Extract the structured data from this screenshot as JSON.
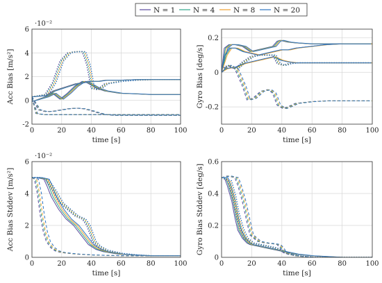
{
  "legend": {
    "position": "top-center",
    "entries": [
      {
        "label": "N = 1",
        "color": "#5b4a9e"
      },
      {
        "label": "N = 4",
        "color": "#2ea68a"
      },
      {
        "label": "N = 8",
        "color": "#f0a030"
      },
      {
        "label": "N = 20",
        "color": "#2d74c0"
      }
    ]
  },
  "line_styles": {
    "solid": "",
    "dashed": "4,3",
    "dotted": "1.5,2"
  },
  "chart_data": [
    {
      "type": "line",
      "ylabel": "Acc Bias [m/s²]",
      "xlabel": "time [s]",
      "xlim": [
        0,
        100
      ],
      "ylim": [
        -2,
        6
      ],
      "xticks": [
        0,
        20,
        40,
        60,
        80,
        100
      ],
      "yticks": [
        -2,
        0,
        2,
        4,
        6
      ],
      "exponent": "·10⁻²",
      "grid": true,
      "groups": [
        {
          "style": "solid",
          "x": [
            0,
            10,
            15,
            20,
            25,
            30,
            35,
            38,
            45,
            50,
            60,
            70,
            80,
            90,
            100
          ],
          "y": [
            -0.1,
            0.3,
            0.6,
            0.1,
            0.6,
            1.2,
            1.6,
            1.5,
            1.0,
            0.8,
            0.6,
            0.55,
            0.5,
            0.5,
            0.5
          ],
          "offsets": [
            -3,
            -1,
            1,
            3
          ]
        },
        {
          "style": "dotted",
          "x": [
            0,
            10,
            15,
            20,
            25,
            30,
            35,
            38,
            41,
            45,
            50,
            60,
            70,
            80,
            90,
            100
          ],
          "y": [
            0.3,
            0.5,
            1.5,
            3.3,
            4.0,
            4.1,
            4.1,
            3.0,
            1.0,
            0.9,
            1.4,
            1.6,
            1.7,
            1.75,
            1.75,
            1.75
          ],
          "offsets": [
            -3,
            -1,
            1,
            3
          ]
        },
        {
          "style": "solid",
          "x": [
            0,
            10,
            15,
            20,
            25,
            30,
            35,
            38,
            45,
            50,
            60,
            70,
            80,
            90,
            100
          ],
          "y": [
            0.3,
            0.4,
            0.8,
            1.0,
            1.2,
            1.4,
            1.5,
            1.6,
            1.6,
            1.7,
            1.7,
            1.75,
            1.75,
            1.75,
            1.75
          ],
          "offsets": [
            -2,
            0,
            1,
            2
          ]
        },
        {
          "style": "dashed",
          "x": [
            0,
            5,
            10,
            15,
            20,
            25,
            30,
            35,
            40,
            45,
            50,
            55,
            60,
            70,
            80,
            90,
            100
          ],
          "y": [
            0.3,
            -0.8,
            -0.95,
            -0.9,
            -0.8,
            -0.7,
            -0.65,
            -0.7,
            -0.85,
            -1.05,
            -1.2,
            -1.25,
            -1.25,
            -1.25,
            -1.25,
            -1.25,
            -1.25
          ],
          "offsets": [
            -2,
            0,
            1,
            2
          ]
        },
        {
          "style": "dashed",
          "x": [
            0,
            3,
            8,
            15,
            25,
            35,
            45,
            55,
            70,
            85,
            100
          ],
          "y": [
            0.2,
            -1.1,
            -1.2,
            -1.2,
            -1.2,
            -1.2,
            -1.2,
            -1.2,
            -1.2,
            -1.2,
            -1.2
          ],
          "offsets": [
            -1,
            0,
            1,
            2
          ]
        }
      ]
    },
    {
      "type": "line",
      "ylabel": "Gyro Bias [deg/s]",
      "xlabel": "time [s]",
      "xlim": [
        0,
        100
      ],
      "ylim": [
        -0.3,
        0.25
      ],
      "xticks": [
        0,
        20,
        40,
        60,
        80,
        100
      ],
      "yticks": [
        -0.2,
        0,
        0.2
      ],
      "exponent": "",
      "grid": true,
      "groups": [
        {
          "style": "solid",
          "x": [
            0,
            3,
            6,
            10,
            15,
            20,
            25,
            30,
            35,
            38,
            40,
            45,
            50,
            60,
            70,
            80,
            90,
            100
          ],
          "y": [
            0.0,
            0.14,
            0.16,
            0.16,
            0.15,
            0.12,
            0.13,
            0.14,
            0.15,
            0.18,
            0.185,
            0.175,
            0.17,
            0.165,
            0.165,
            0.165,
            0.165,
            0.165
          ],
          "offsets": [
            -3,
            -1,
            1,
            3
          ]
        },
        {
          "style": "solid",
          "x": [
            0,
            3,
            6,
            10,
            15,
            20,
            25,
            30,
            35,
            40,
            45,
            50,
            60,
            70,
            80,
            90,
            100
          ],
          "y": [
            0.0,
            0.1,
            0.14,
            0.14,
            0.12,
            0.11,
            0.1,
            0.11,
            0.12,
            0.13,
            0.13,
            0.14,
            0.15,
            0.16,
            0.165,
            0.165,
            0.165
          ],
          "offsets": [
            -2,
            0,
            2
          ]
        },
        {
          "style": "solid",
          "x": [
            0,
            3,
            6,
            10,
            15,
            20,
            25,
            30,
            35,
            40,
            45,
            50,
            60,
            70,
            80,
            90,
            100
          ],
          "y": [
            0.0,
            0.02,
            0.025,
            0.03,
            0.05,
            0.06,
            0.07,
            0.08,
            0.09,
            0.07,
            0.06,
            0.055,
            0.055,
            0.055,
            0.055,
            0.055,
            0.055
          ],
          "offsets": [
            -2,
            0,
            2
          ]
        },
        {
          "style": "dotted",
          "x": [
            0,
            5,
            10,
            15,
            20,
            25,
            30,
            35,
            38,
            42,
            45,
            50,
            60,
            70,
            80,
            90,
            100
          ],
          "y": [
            0.02,
            0.04,
            0.02,
            0.06,
            0.09,
            0.1,
            0.1,
            0.1,
            0.05,
            0.04,
            0.05,
            0.055,
            0.055,
            0.055,
            0.055,
            0.055,
            0.055
          ],
          "offsets": [
            -3,
            -1,
            1,
            3
          ]
        },
        {
          "style": "dashed",
          "x": [
            0,
            5,
            10,
            15,
            18,
            22,
            27,
            32,
            35,
            38,
            42,
            45,
            50,
            60,
            70,
            80,
            90,
            100
          ],
          "y": [
            0.0,
            0.04,
            0.02,
            -0.08,
            -0.16,
            -0.15,
            -0.11,
            -0.1,
            -0.12,
            -0.19,
            -0.21,
            -0.2,
            -0.18,
            -0.17,
            -0.165,
            -0.165,
            -0.165,
            -0.165
          ],
          "offsets": [
            -3,
            -1,
            1,
            3
          ]
        }
      ]
    },
    {
      "type": "line",
      "ylabel": "Acc Bias Stddev [m/s²]",
      "xlabel": "time [s]",
      "xlim": [
        0,
        100
      ],
      "ylim": [
        0,
        6
      ],
      "xticks": [
        0,
        20,
        40,
        60,
        80,
        100
      ],
      "yticks": [
        0,
        2,
        4,
        6
      ],
      "exponent": "·10⁻²",
      "grid": true,
      "groups": [
        {
          "style": "solid",
          "x": [
            0,
            5,
            10,
            12,
            15,
            20,
            25,
            30,
            35,
            40,
            45,
            50,
            60,
            70,
            80,
            90,
            100
          ],
          "y": [
            5.0,
            5.0,
            4.9,
            4.5,
            3.8,
            3.0,
            2.4,
            2.0,
            1.4,
            0.8,
            0.5,
            0.35,
            0.2,
            0.15,
            0.1,
            0.1,
            0.1
          ],
          "offsets": [
            -5,
            -2,
            1,
            4
          ]
        },
        {
          "style": "dotted",
          "x": [
            0,
            5,
            10,
            15,
            20,
            25,
            30,
            35,
            38,
            42,
            45,
            50,
            60,
            70,
            80,
            90,
            100
          ],
          "y": [
            5.0,
            5.0,
            4.9,
            4.2,
            3.4,
            3.0,
            2.6,
            2.4,
            2.0,
            1.0,
            0.7,
            0.45,
            0.25,
            0.15,
            0.1,
            0.1,
            0.1
          ],
          "offsets": [
            -3,
            -1,
            1,
            3
          ]
        },
        {
          "style": "dashed",
          "x": [
            0,
            2,
            4,
            6,
            8,
            10,
            13,
            16,
            20,
            25,
            30,
            40,
            50,
            60,
            80,
            100
          ],
          "y": [
            5.0,
            4.9,
            4.0,
            2.6,
            1.6,
            1.0,
            0.6,
            0.4,
            0.3,
            0.25,
            0.2,
            0.15,
            0.12,
            0.1,
            0.1,
            0.1
          ],
          "offsets": [
            -1,
            1,
            3,
            6
          ]
        }
      ]
    },
    {
      "type": "line",
      "ylabel": "Gyro Bias Stddev [deg/s]",
      "xlabel": "time [s]",
      "xlim": [
        0,
        100
      ],
      "ylim": [
        0,
        0.6
      ],
      "xticks": [
        0,
        20,
        40,
        60,
        80,
        100
      ],
      "yticks": [
        0,
        0.2,
        0.4,
        0.6
      ],
      "exponent": "",
      "grid": true,
      "groups": [
        {
          "style": "solid",
          "x": [
            0,
            3,
            5,
            8,
            10,
            12,
            15,
            18,
            20,
            25,
            30,
            35,
            40,
            45,
            50,
            60,
            70,
            80,
            90,
            100
          ],
          "y": [
            0.5,
            0.5,
            0.45,
            0.35,
            0.25,
            0.17,
            0.12,
            0.09,
            0.08,
            0.07,
            0.06,
            0.05,
            0.04,
            0.03,
            0.02,
            0.01,
            0.005,
            0.0,
            0.0,
            0.0
          ],
          "offsets": [
            -3,
            -1,
            1,
            3,
            5
          ]
        },
        {
          "style": "dashed",
          "x": [
            0,
            5,
            10,
            12,
            15,
            18,
            20,
            25,
            30,
            35,
            38,
            40,
            42,
            45,
            50,
            60,
            70,
            80,
            90,
            100
          ],
          "y": [
            0.5,
            0.51,
            0.5,
            0.45,
            0.35,
            0.22,
            0.14,
            0.1,
            0.09,
            0.085,
            0.08,
            0.06,
            0.03,
            0.02,
            0.01,
            0.0,
            0.0,
            0.0,
            0.0,
            0.0
          ],
          "offsets": [
            -3,
            -1,
            1,
            3
          ]
        },
        {
          "style": "dotted",
          "x": [
            0,
            5,
            8,
            10,
            13,
            16,
            20,
            25,
            30,
            35,
            40,
            45,
            50,
            60,
            70,
            80,
            90,
            100
          ],
          "y": [
            0.5,
            0.48,
            0.38,
            0.28,
            0.18,
            0.12,
            0.09,
            0.08,
            0.07,
            0.06,
            0.04,
            0.02,
            0.01,
            0.0,
            0.0,
            0.0,
            0.0,
            0.0
          ],
          "offsets": [
            -2,
            0,
            2,
            4
          ]
        }
      ]
    }
  ]
}
